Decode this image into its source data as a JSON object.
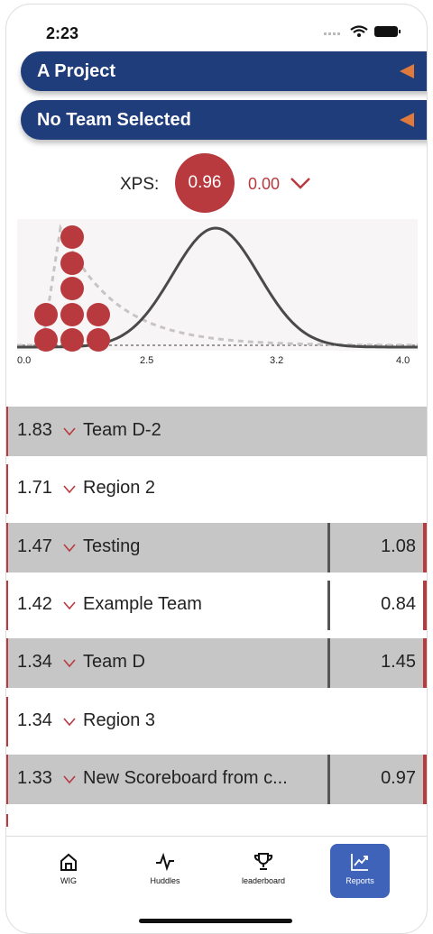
{
  "status_bar": {
    "time": "2:23"
  },
  "selectors": [
    "A Project",
    "No Team Selected"
  ],
  "xps": {
    "label": "XPS:",
    "value": "0.96",
    "change": "0.00"
  },
  "chart": {
    "x_labels": [
      "0.0",
      "2.5",
      "3.2",
      "4.0"
    ]
  },
  "rows": [
    {
      "score": "1.83",
      "name": "Team D-2"
    },
    {
      "score": "1.71",
      "name": "Region 2"
    },
    {
      "score": "1.47",
      "name": "Testing",
      "value": "1.08"
    },
    {
      "score": "1.42",
      "name": "Example Team",
      "value": "0.84"
    },
    {
      "score": "1.34",
      "name": "Team D",
      "value": "1.45"
    },
    {
      "score": "1.34",
      "name": "Region 3"
    },
    {
      "score": "1.33",
      "name": "New Scoreboard from c...",
      "value": "0.97"
    }
  ],
  "nav": [
    "WIG",
    "Huddles",
    "leaderboard",
    "Reports"
  ]
}
